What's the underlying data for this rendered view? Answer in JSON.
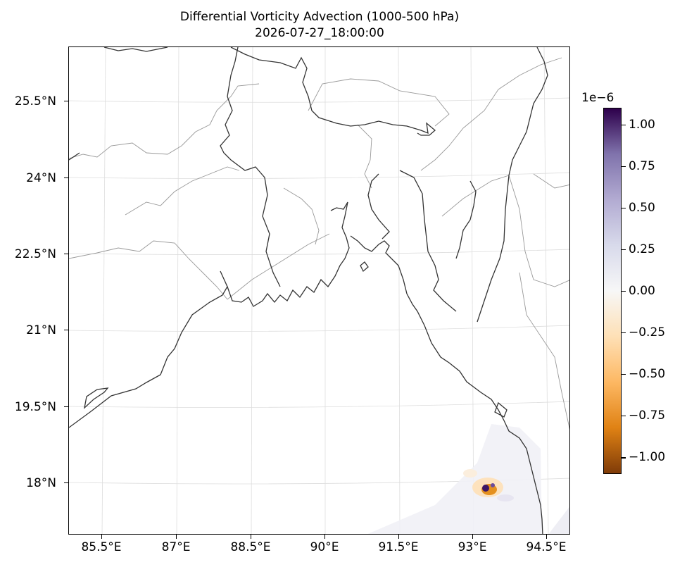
{
  "title": {
    "line1": "Differential Vorticity Advection (1000-500 hPa)",
    "line2": "2026-07-27_18:00:00"
  },
  "map": {
    "projection": "lambert-conformal",
    "lat_labels": [
      "25.5°N",
      "24°N",
      "22.5°N",
      "21°N",
      "19.5°N",
      "18°N"
    ],
    "lon_labels": [
      "85.5°E",
      "87°E",
      "88.5°E",
      "90°E",
      "91.5°E",
      "93°E",
      "94.5°E"
    ],
    "gridlines": true,
    "coastline_color": "#333333",
    "border_color": "#999999"
  },
  "colorbar": {
    "exponent_label": "1e−6",
    "tick_labels": [
      "1.00",
      "0.75",
      "0.50",
      "0.25",
      "0.00",
      "−0.25",
      "−0.50",
      "−0.75",
      "−1.00"
    ],
    "vmin": -1.1,
    "vmax": 1.1,
    "colormap": "PuOr",
    "colors": [
      "#7f3b08",
      "#e08214",
      "#fdb863",
      "#fee0b6",
      "#f7f7f7",
      "#d8daeb",
      "#b2abd2",
      "#8073ac",
      "#2d004b"
    ]
  }
}
